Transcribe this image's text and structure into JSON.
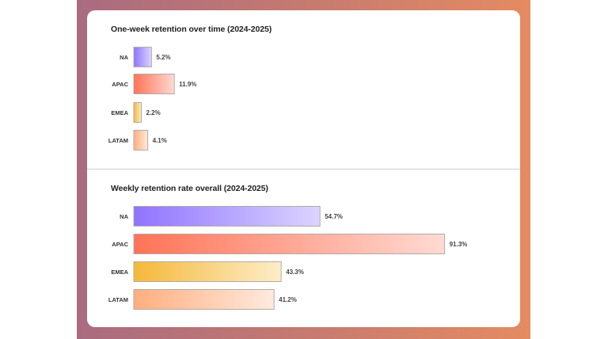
{
  "chart_data": [
    {
      "type": "bar",
      "orientation": "horizontal",
      "title": "One-week retention over time (2024-2025)",
      "categories": [
        "NA",
        "APAC",
        "EMEA",
        "LATAM"
      ],
      "values": [
        5.2,
        11.9,
        2.2,
        4.1
      ],
      "value_labels": [
        "5.2%",
        "11.9%",
        "2.2%",
        "4.1%"
      ],
      "unit": "%",
      "grid": false
    },
    {
      "type": "bar",
      "orientation": "horizontal",
      "title": "Weekly retention rate overall  (2024-2025)",
      "categories": [
        "NA",
        "APAC",
        "EMEA",
        "LATAM"
      ],
      "values": [
        54.7,
        91.3,
        43.3,
        41.2
      ],
      "value_labels": [
        "54.7%",
        "91.3%",
        "43.3%",
        "41.2%"
      ],
      "unit": "%",
      "grid": false
    }
  ],
  "colors": {
    "NA": [
      "#8f73ff",
      "#dcd4ff"
    ],
    "APAC": [
      "#ff7356",
      "#ffdad3"
    ],
    "EMEA": [
      "#f5b838",
      "#fdedc9"
    ],
    "LATAM": [
      "#ffae7d",
      "#ffeadf"
    ]
  }
}
